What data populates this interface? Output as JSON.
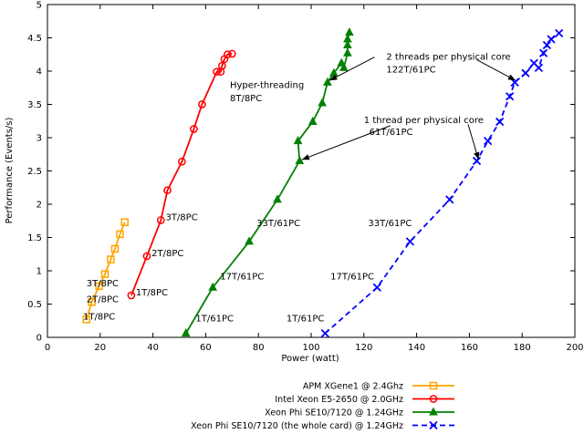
{
  "chart_data": {
    "type": "line",
    "xlabel": "Power (watt)",
    "ylabel": "Performance (Events/s)",
    "xlim": [
      0,
      200
    ],
    "ylim": [
      0,
      5
    ],
    "xticks": [
      0,
      20,
      40,
      60,
      80,
      100,
      120,
      140,
      160,
      180,
      200
    ],
    "yticks": [
      0,
      0.5,
      1,
      1.5,
      2,
      2.5,
      3,
      3.5,
      4,
      4.5,
      5
    ],
    "grid": false,
    "legend_position": "bottom-right",
    "series": [
      {
        "name": "APM XGene1 @ 2.4Ghz",
        "color": "#ffa500",
        "marker": "square",
        "dashed": false,
        "points": [
          [
            14.8,
            0.27
          ],
          [
            16.8,
            0.53
          ],
          [
            19.6,
            0.77
          ],
          [
            21.8,
            0.95
          ],
          [
            24,
            1.17
          ],
          [
            25.6,
            1.33
          ],
          [
            27.5,
            1.55
          ],
          [
            29.3,
            1.73
          ]
        ]
      },
      {
        "name": "Intel Xeon E5-2650 @ 2.0GHz",
        "color": "#ff0000",
        "marker": "circle",
        "dashed": false,
        "points": [
          [
            31.8,
            0.63
          ],
          [
            37.7,
            1.22
          ],
          [
            43,
            1.76
          ],
          [
            45.5,
            2.21
          ],
          [
            51,
            2.64
          ],
          [
            55.5,
            3.13
          ],
          [
            58.6,
            3.5
          ],
          [
            64.2,
            3.99
          ],
          [
            65.7,
            3.99
          ],
          [
            66.2,
            4.08
          ],
          [
            67.1,
            4.18
          ],
          [
            68.3,
            4.25
          ],
          [
            70,
            4.26
          ]
        ]
      },
      {
        "name": "Xeon Phi SE10/7120 @ 1.24GHz",
        "color": "#008000",
        "marker": "triangle",
        "dashed": false,
        "points": [
          [
            52.5,
            0.06
          ],
          [
            62.7,
            0.75
          ],
          [
            76.5,
            1.44
          ],
          [
            87.2,
            2.07
          ],
          [
            95.6,
            2.65
          ],
          [
            95,
            2.95
          ],
          [
            100.6,
            3.24
          ],
          [
            104.2,
            3.52
          ],
          [
            106.2,
            3.83
          ],
          [
            108.6,
            3.97
          ],
          [
            111.5,
            4.12
          ],
          [
            112.4,
            4.05
          ],
          [
            113.8,
            4.27
          ],
          [
            113.8,
            4.39
          ],
          [
            113.8,
            4.48
          ],
          [
            114.5,
            4.58
          ]
        ]
      },
      {
        "name": "Xeon Phi SE10/7120 (the whole card) @ 1.24GHz",
        "color": "#0000ff",
        "marker": "x",
        "dashed": true,
        "points": [
          [
            105.3,
            0.06
          ],
          [
            125,
            0.75
          ],
          [
            137.5,
            1.44
          ],
          [
            152.5,
            2.07
          ],
          [
            162.8,
            2.65
          ],
          [
            167,
            2.95
          ],
          [
            171.5,
            3.24
          ],
          [
            175.3,
            3.62
          ],
          [
            177.2,
            3.83
          ],
          [
            181.3,
            3.97
          ],
          [
            184.5,
            4.12
          ],
          [
            186.3,
            4.05
          ],
          [
            188.1,
            4.27
          ],
          [
            189.4,
            4.39
          ],
          [
            191,
            4.48
          ],
          [
            194,
            4.57
          ]
        ]
      }
    ],
    "annotations": [
      {
        "text": "3T/8PC",
        "x": 14.8,
        "y": 0.77
      },
      {
        "text": "2T/8PC",
        "x": 14.8,
        "y": 0.53
      },
      {
        "text": "1T/8PC",
        "x": 13.5,
        "y": 0.27
      },
      {
        "text": "3T/8PC",
        "x": 44.8,
        "y": 1.76
      },
      {
        "text": "2T/8PC",
        "x": 39.5,
        "y": 1.22
      },
      {
        "text": "1T/8PC",
        "x": 33.5,
        "y": 0.63
      },
      {
        "text": "Hyper-threading",
        "x": 69.2,
        "y": 3.75
      },
      {
        "text": "8T/8PC",
        "x": 69.2,
        "y": 3.55
      },
      {
        "text": "33T/61PC",
        "x": 79.3,
        "y": 1.67
      },
      {
        "text": "17T/61PC",
        "x": 65.5,
        "y": 0.87
      },
      {
        "text": "1T/61PC",
        "x": 56.2,
        "y": 0.24
      },
      {
        "text": "33T/61PC",
        "x": 121.6,
        "y": 1.67
      },
      {
        "text": "17T/61PC",
        "x": 107.3,
        "y": 0.87
      },
      {
        "text": "1T/61PC",
        "x": 90.6,
        "y": 0.24
      },
      {
        "text": "1 thread per physical core",
        "x": 120,
        "y": 3.22
      },
      {
        "text": "61T/61PC",
        "x": 122,
        "y": 3.04
      },
      {
        "text": "2 threads per physical core",
        "x": 128.5,
        "y": 4.17
      },
      {
        "text": "122T/61PC",
        "x": 128.5,
        "y": 3.98
      }
    ],
    "arrows": [
      {
        "from": [
          130,
          3.18
        ],
        "to": [
          96.5,
          2.67
        ]
      },
      {
        "from": [
          159.5,
          3.2
        ],
        "to": [
          163.5,
          2.67
        ]
      },
      {
        "from": [
          124,
          4.21
        ],
        "to": [
          107,
          3.86
        ]
      },
      {
        "from": [
          162.8,
          4.17
        ],
        "to": [
          177.5,
          3.86
        ]
      }
    ]
  }
}
